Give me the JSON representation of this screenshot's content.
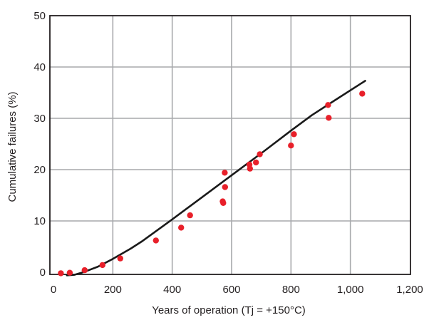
{
  "chart_data": {
    "type": "scatter",
    "xlabel": "Years of operation (Tj = +150°C)",
    "ylabel": "Cumulative failures (%)",
    "xlim": [
      0,
      1200
    ],
    "ylim": [
      0,
      50
    ],
    "x_ticks": [
      0,
      200,
      400,
      600,
      800,
      1000,
      1200
    ],
    "x_tick_labels": [
      "0",
      "200",
      "400",
      "600",
      "800",
      "1,000",
      "1,200"
    ],
    "y_ticks": [
      0,
      10,
      20,
      30,
      40,
      50
    ],
    "y_tick_labels": [
      "0",
      "10",
      "20",
      "30",
      "40",
      "50"
    ],
    "grid": true,
    "series": [
      {
        "kind": "points",
        "color": "#e8202a",
        "points": [
          [
            25,
            -0.2
          ],
          [
            55,
            -0.1
          ],
          [
            105,
            0.4
          ],
          [
            165,
            1.4
          ],
          [
            225,
            2.7
          ],
          [
            345,
            6.2
          ],
          [
            430,
            8.7
          ],
          [
            460,
            11.1
          ],
          [
            570,
            13.8
          ],
          [
            572,
            13.5
          ],
          [
            577,
            19.4
          ],
          [
            578,
            16.6
          ],
          [
            660,
            21.0
          ],
          [
            662,
            20.2
          ],
          [
            682,
            21.4
          ],
          [
            695,
            23.0
          ],
          [
            800,
            24.7
          ],
          [
            810,
            26.9
          ],
          [
            925,
            32.6
          ],
          [
            927,
            30.1
          ],
          [
            1040,
            34.8
          ]
        ]
      },
      {
        "kind": "fit-line",
        "color": "#1a1a1a",
        "points": [
          [
            45,
            -0.6
          ],
          [
            70,
            -0.5
          ],
          [
            100,
            0.0
          ],
          [
            150,
            1.1
          ],
          [
            200,
            2.6
          ],
          [
            260,
            4.6
          ],
          [
            300,
            6.1
          ],
          [
            400,
            10.3
          ],
          [
            500,
            14.6
          ],
          [
            600,
            18.9
          ],
          [
            700,
            23.2
          ],
          [
            800,
            27.6
          ],
          [
            870,
            30.6
          ],
          [
            950,
            33.6
          ],
          [
            1050,
            37.3
          ]
        ]
      }
    ]
  }
}
